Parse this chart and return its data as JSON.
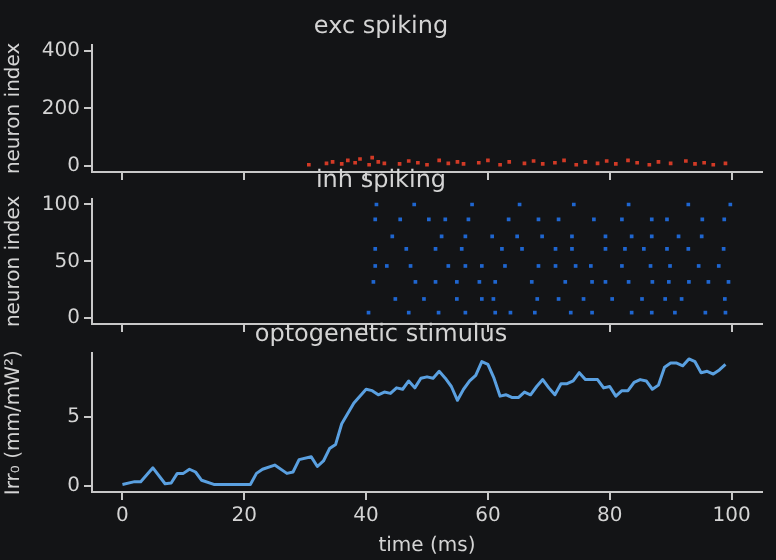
{
  "chart_data": [
    {
      "type": "scatter",
      "title": "exc spiking",
      "ylabel": "neuron index",
      "color": "#d23a26",
      "marker": "square",
      "tick_labels": "y",
      "xlim": [
        -5,
        105
      ],
      "xticks": [
        {
          "value": 0,
          "label": null
        },
        {
          "value": 20,
          "label": null
        },
        {
          "value": 40,
          "label": null
        },
        {
          "value": 60,
          "label": null
        },
        {
          "value": 80,
          "label": null
        },
        {
          "value": 100,
          "label": null
        }
      ],
      "ylim": [
        -20,
        420
      ],
      "yticks": [
        0,
        200,
        400
      ],
      "x": [
        30.6,
        33.5,
        34.5,
        36,
        37,
        38.2,
        39,
        40.5,
        41,
        42,
        43,
        45.5,
        47,
        48.5,
        50,
        52,
        53.5,
        55,
        56,
        58.5,
        60,
        62,
        63.5,
        66,
        67.5,
        69,
        71,
        72.5,
        74.5,
        76,
        78,
        79.5,
        81,
        83,
        84.5,
        86.5,
        88,
        90,
        92.5,
        94,
        95.5,
        97,
        99
      ],
      "values": [
        5,
        10,
        15,
        8,
        20,
        12,
        25,
        5,
        30,
        15,
        10,
        8,
        18,
        12,
        5,
        20,
        10,
        15,
        8,
        12,
        20,
        5,
        15,
        10,
        18,
        8,
        12,
        20,
        5,
        15,
        10,
        18,
        8,
        20,
        12,
        5,
        15,
        10,
        18,
        8,
        12,
        5,
        10
      ]
    },
    {
      "type": "scatter",
      "title": "inh spiking",
      "ylabel": "neuron index",
      "color": "#1f66d0",
      "marker": "square",
      "tick_labels": "y",
      "xlim": [
        -5,
        105
      ],
      "xticks": [
        {
          "value": 0,
          "label": null
        },
        {
          "value": 20,
          "label": null
        },
        {
          "value": 40,
          "label": null
        },
        {
          "value": 60,
          "label": null
        },
        {
          "value": 80,
          "label": null
        },
        {
          "value": 100,
          "label": null
        }
      ],
      "ylim": [
        -5,
        105
      ],
      "yticks": [
        0,
        50,
        100
      ],
      "x": [
        41.7,
        47.9,
        57.4,
        65.2,
        74.1,
        83.1,
        92.9,
        99.8,
        41.5,
        45.6,
        50.3,
        53.0,
        56.8,
        63.4,
        68.3,
        71.6,
        77.4,
        82.0,
        86.9,
        89.4,
        95.2,
        98.8,
        44.3,
        52.4,
        56.3,
        60.7,
        64.8,
        68.9,
        73.8,
        79.3,
        83.6,
        86.9,
        91.3,
        95.1,
        41.5,
        46.6,
        51.4,
        55.7,
        62.3,
        65.6,
        71.1,
        73.8,
        79.3,
        82.5,
        85.6,
        89.4,
        92.9,
        98.7,
        41.5,
        43.4,
        47.3,
        53.5,
        56.3,
        59.0,
        62.8,
        68.3,
        71.1,
        74.4,
        76.9,
        82.0,
        86.7,
        89.9,
        94.6,
        97.9,
        41.2,
        48.1,
        51.4,
        54.9,
        58.6,
        61.2,
        67.2,
        72.7,
        77.1,
        79.3,
        83.1,
        87.0,
        89.7,
        93.0,
        96.2,
        99.5,
        44.8,
        49.5,
        54.9,
        59.0,
        60.9,
        68.1,
        71.6,
        75.7,
        80.4,
        85.3,
        89.1,
        91.8,
        98.9,
        40.4,
        47.0,
        51.9,
        56.3,
        61.2,
        63.7,
        67.7,
        73.6,
        77.1,
        83.6,
        86.9,
        90.7,
        95.7,
        99.0
      ],
      "values": [
        100,
        100,
        100,
        100,
        100,
        100,
        100,
        100,
        87,
        87,
        87,
        87,
        87,
        87,
        87,
        87,
        87,
        87,
        87,
        87,
        87,
        87,
        72,
        72,
        72,
        72,
        72,
        72,
        72,
        72,
        72,
        72,
        72,
        72,
        61,
        61,
        61,
        61,
        61,
        61,
        61,
        61,
        61,
        61,
        61,
        61,
        61,
        61,
        46,
        46,
        46,
        46,
        46,
        46,
        46,
        46,
        46,
        46,
        46,
        46,
        46,
        46,
        46,
        46,
        32,
        32,
        32,
        32,
        32,
        32,
        32,
        32,
        32,
        32,
        32,
        32,
        32,
        32,
        32,
        32,
        17,
        17,
        17,
        17,
        17,
        17,
        17,
        17,
        17,
        17,
        17,
        17,
        17,
        5,
        5,
        5,
        5,
        5,
        5,
        5,
        5,
        5,
        5,
        5,
        5,
        5,
        5
      ]
    },
    {
      "type": "line",
      "title": "optogenetic stimulus",
      "xlabel": "time (ms)",
      "ylabel": "Irr₀ (mm/mW²)",
      "color": "#5aa0e0",
      "marker": "none",
      "xlim": [
        -5,
        105
      ],
      "xticks": [
        0,
        20,
        40,
        60,
        80,
        100
      ],
      "ylim": [
        -0.45,
        9.6
      ],
      "yticks": [
        0,
        5
      ],
      "x": [
        0,
        2,
        3,
        5,
        7,
        8,
        9,
        10,
        11,
        12,
        13,
        15,
        20,
        21,
        22,
        23,
        25,
        27,
        28,
        29,
        31,
        32,
        33,
        34,
        35,
        36,
        38,
        40,
        41,
        42,
        43,
        44,
        45,
        46,
        47,
        48,
        49,
        50,
        51,
        52,
        53,
        54,
        55,
        56,
        57,
        58,
        59,
        60,
        61,
        62,
        63,
        64,
        65,
        66,
        67,
        68,
        69,
        70,
        71,
        72,
        73,
        74,
        75,
        76,
        78,
        79,
        80,
        81,
        82,
        83,
        84,
        85,
        86,
        87,
        88,
        89,
        90,
        91,
        92,
        93,
        94,
        95,
        96,
        97,
        98,
        99
      ],
      "values": [
        0.1,
        0.3,
        0.3,
        1.3,
        0.15,
        0.2,
        0.9,
        0.9,
        1.2,
        1.0,
        0.4,
        0.1,
        0.1,
        0.1,
        0.9,
        1.2,
        1.5,
        0.9,
        1.0,
        1.9,
        2.1,
        1.4,
        1.8,
        2.7,
        3.0,
        4.5,
        6.0,
        7.0,
        6.9,
        6.6,
        6.8,
        6.7,
        7.1,
        7.0,
        7.6,
        7.1,
        7.8,
        7.9,
        7.8,
        8.3,
        7.8,
        7.2,
        6.2,
        7.0,
        7.6,
        8.0,
        9.0,
        8.8,
        7.8,
        6.5,
        6.6,
        6.4,
        6.4,
        6.8,
        6.6,
        7.2,
        7.7,
        7.1,
        6.6,
        7.4,
        7.4,
        7.6,
        8.2,
        7.7,
        7.7,
        7.1,
        7.2,
        6.5,
        6.9,
        6.9,
        7.5,
        7.7,
        7.6,
        7.0,
        7.3,
        8.6,
        8.9,
        8.9,
        8.7,
        9.2,
        9.0,
        8.2,
        8.3,
        8.1,
        8.4,
        8.8
      ]
    }
  ]
}
